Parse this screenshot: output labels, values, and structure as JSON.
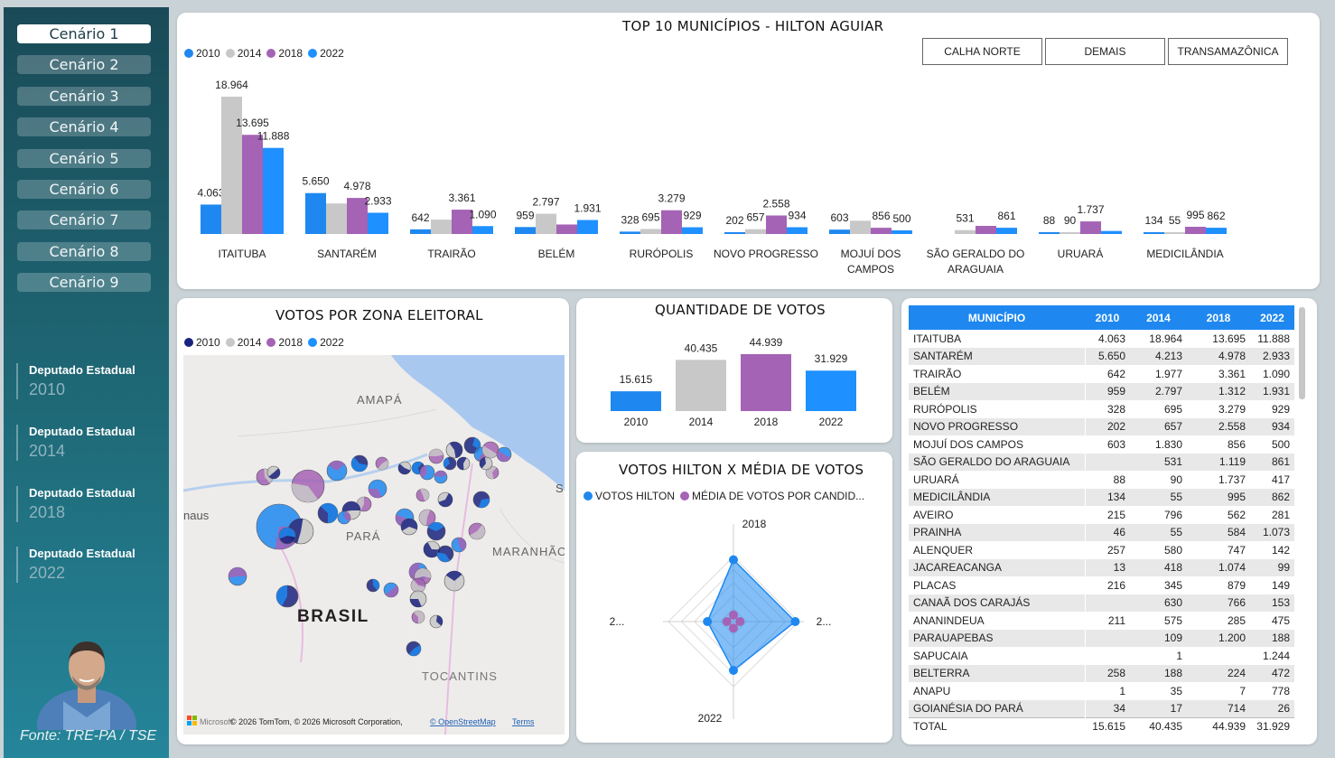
{
  "sidebar": {
    "scenarios": [
      "Cenário 1",
      "Cenário 2",
      "Cenário 3",
      "Cenário 4",
      "Cenário 5",
      "Cenário 6",
      "Cenário 7",
      "Cenário 8",
      "Cenário 9"
    ],
    "elections": [
      {
        "title": "Deputado Estadual",
        "year": "2010"
      },
      {
        "title": "Deputado Estadual",
        "year": "2014"
      },
      {
        "title": "Deputado Estadual",
        "year": "2018"
      },
      {
        "title": "Deputado Estadual",
        "year": "2022"
      }
    ],
    "source": "Fonte: TRE-PA / TSE"
  },
  "colors": {
    "y2010": "#1e88f0",
    "y2014": "#c8c8c8",
    "y2018": "#a463b5",
    "y2022": "#1e90ff",
    "y2010_dark": "#1a237e",
    "accent": "#1e88f0"
  },
  "top10": {
    "title": "TOP 10 MUNICÍPIOS - HILTON AGUIAR",
    "legend": [
      "2010",
      "2014",
      "2018",
      "2022"
    ],
    "region_buttons": [
      "CALHA NORTE",
      "DEMAIS",
      "TRANSAMAZÔNICA"
    ]
  },
  "map_panel": {
    "title": "VOTOS POR ZONA ELEITORAL",
    "legend": [
      "2010",
      "2014",
      "2018",
      "2022"
    ],
    "labels": {
      "amapa": "AMAPÁ",
      "para": "PARÁ",
      "maranhao": "MARANHÃC",
      "brasil": "BRASIL",
      "tocantins": "TOCANTINS",
      "naus": "naus",
      "s": "S"
    },
    "attribution_logo": "Microsoft",
    "attribution": "© 2026 TomTom, © 2026 Microsoft Corporation,",
    "osm": "© OpenStreetMap",
    "terms": "Terms"
  },
  "qty_panel": {
    "title": "QUANTIDADE DE VOTOS"
  },
  "radar_panel": {
    "title": "VOTOS HILTON X MÉDIA DE VOTOS",
    "legend": [
      "VOTOS HILTON",
      "MÉDIA DE VOTOS POR CANDID..."
    ],
    "axis_labels": [
      "2018",
      "2...",
      "2022",
      "2..."
    ]
  },
  "table": {
    "headers": [
      "MUNICÍPIO",
      "2010",
      "2014",
      "2018",
      "2022"
    ],
    "rows": [
      [
        "ITAITUBA",
        "4.063",
        "18.964",
        "13.695",
        "11.888"
      ],
      [
        "SANTARÉM",
        "5.650",
        "4.213",
        "4.978",
        "2.933"
      ],
      [
        "TRAIRÃO",
        "642",
        "1.977",
        "3.361",
        "1.090"
      ],
      [
        "BELÉM",
        "959",
        "2.797",
        "1.312",
        "1.931"
      ],
      [
        "RURÓPOLIS",
        "328",
        "695",
        "3.279",
        "929"
      ],
      [
        "NOVO PROGRESSO",
        "202",
        "657",
        "2.558",
        "934"
      ],
      [
        "MOJUÍ DOS CAMPOS",
        "603",
        "1.830",
        "856",
        "500"
      ],
      [
        "SÃO GERALDO DO ARAGUAIA",
        "",
        "531",
        "1.119",
        "861"
      ],
      [
        "URUARÁ",
        "88",
        "90",
        "1.737",
        "417"
      ],
      [
        "MEDICILÂNDIA",
        "134",
        "55",
        "995",
        "862"
      ],
      [
        "AVEIRO",
        "215",
        "796",
        "562",
        "281"
      ],
      [
        "PRAINHA",
        "46",
        "55",
        "584",
        "1.073"
      ],
      [
        "ALENQUER",
        "257",
        "580",
        "747",
        "142"
      ],
      [
        "JACAREACANGA",
        "13",
        "418",
        "1.074",
        "99"
      ],
      [
        "PLACAS",
        "216",
        "345",
        "879",
        "149"
      ],
      [
        "CANAÃ DOS CARAJÁS",
        "",
        "630",
        "766",
        "153"
      ],
      [
        "ANANINDEUA",
        "211",
        "575",
        "285",
        "475"
      ],
      [
        "PARAUAPEBAS",
        "",
        "109",
        "1.200",
        "188"
      ],
      [
        "SAPUCAIA",
        "",
        "1",
        "",
        "1.244"
      ],
      [
        "BELTERRA",
        "258",
        "188",
        "224",
        "472"
      ],
      [
        "ANAPU",
        "1",
        "35",
        "7",
        "778"
      ],
      [
        "GOIANÉSIA DO PARÁ",
        "34",
        "17",
        "714",
        "26"
      ]
    ],
    "total": [
      "TOTAL",
      "15.615",
      "40.435",
      "44.939",
      "31.929"
    ]
  },
  "chart_data": [
    {
      "type": "bar",
      "title": "TOP 10 MUNICÍPIOS - HILTON AGUIAR",
      "categories": [
        "ITAITUBA",
        "SANTARÉM",
        "TRAIRÃO",
        "BELÉM",
        "RURÓPOLIS",
        "NOVO PROGRESSO",
        "MOJUÍ DOS CAMPOS",
        "SÃO GERALDO DO ARAGUAIA",
        "URUARÁ",
        "MEDICILÂNDIA"
      ],
      "series": [
        {
          "name": "2010",
          "values": [
            4063,
            5650,
            642,
            959,
            328,
            202,
            603,
            null,
            88,
            134
          ],
          "labels": [
            "4.063",
            "5.650",
            "642",
            "959",
            "328",
            "202",
            "603",
            "",
            "88",
            "134"
          ]
        },
        {
          "name": "2014",
          "values": [
            18964,
            4213,
            1977,
            2797,
            695,
            657,
            1830,
            531,
            90,
            55
          ],
          "labels": [
            "18.964",
            "",
            "",
            "2.797",
            "695",
            "657",
            "",
            "531",
            "90",
            "55"
          ]
        },
        {
          "name": "2018",
          "values": [
            13695,
            4978,
            3361,
            1312,
            3279,
            2558,
            856,
            1119,
            1737,
            995
          ],
          "labels": [
            "13.695",
            "4.978",
            "3.361",
            "",
            "3.279",
            "2.558",
            "856",
            "",
            "1.737",
            "995"
          ]
        },
        {
          "name": "2022",
          "values": [
            11888,
            2933,
            1090,
            1931,
            929,
            934,
            500,
            861,
            417,
            862
          ],
          "labels": [
            "11.888",
            "2.933",
            "1.090",
            "1.931",
            "929",
            "934",
            "500",
            "861",
            "",
            "862"
          ]
        }
      ],
      "category_labels": [
        [
          "ITAITUBA"
        ],
        [
          "SANTARÉM"
        ],
        [
          "TRAIRÃO"
        ],
        [
          "BELÉM"
        ],
        [
          "RURÓPOLIS"
        ],
        [
          "NOVO PROGRESSO"
        ],
        [
          "MOJUÍ DOS",
          "CAMPOS"
        ],
        [
          "SÃO GERALDO DO",
          "ARAGUAIA"
        ],
        [
          "URUARÁ"
        ],
        [
          "MEDICILÂNDIA"
        ]
      ]
    },
    {
      "type": "bar",
      "title": "QUANTIDADE DE VOTOS",
      "categories": [
        "2010",
        "2014",
        "2018",
        "2022"
      ],
      "values": [
        15615,
        40435,
        44939,
        31929
      ],
      "labels": [
        "15.615",
        "40.435",
        "44.939",
        "31.929"
      ]
    },
    {
      "type": "radar",
      "title": "VOTOS HILTON X MÉDIA DE VOTOS",
      "axes": [
        "2018",
        "2...",
        "2022",
        "2..."
      ],
      "series": [
        {
          "name": "VOTOS HILTON",
          "values": [
            0.95,
            0.95,
            0.75,
            0.4
          ]
        },
        {
          "name": "MÉDIA DE VOTOS POR CANDID...",
          "values": [
            0.1,
            0.1,
            0.1,
            0.1
          ]
        }
      ]
    }
  ]
}
